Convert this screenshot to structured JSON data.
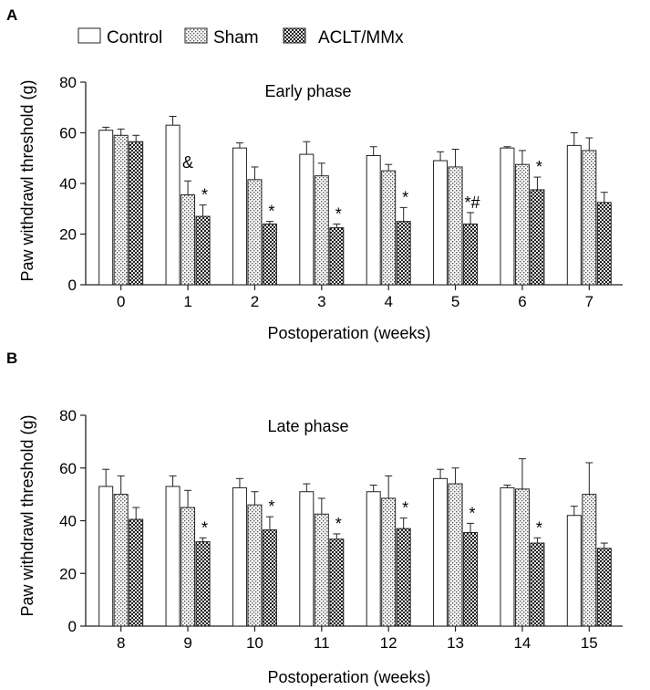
{
  "legend": [
    {
      "name": "Control",
      "pattern": "none"
    },
    {
      "name": "Sham",
      "pattern": "dots"
    },
    {
      "name": "ACLT/MMx",
      "pattern": "checker"
    }
  ],
  "chart_data": [
    {
      "type": "bar",
      "panel": "A",
      "title": "Early phase",
      "xlabel": "Postoperation (weeks)",
      "ylabel": "Paw withdrawl threshold (g)",
      "ylim": [
        0,
        80
      ],
      "yticks": [
        0,
        20,
        40,
        60,
        80
      ],
      "categories": [
        "0",
        "1",
        "2",
        "3",
        "4",
        "5",
        "6",
        "7"
      ],
      "series": [
        {
          "name": "Control",
          "values": [
            61,
            63,
            54,
            51.5,
            51,
            49,
            54,
            55
          ],
          "errors": [
            1.2,
            3.5,
            2,
            5,
            3.5,
            3.5,
            0.5,
            5
          ]
        },
        {
          "name": "Sham",
          "values": [
            59,
            35.5,
            41.5,
            43,
            45,
            46.5,
            47.5,
            53
          ],
          "errors": [
            2.5,
            5.5,
            5,
            5,
            2.5,
            7,
            5.5,
            5
          ]
        },
        {
          "name": "ACLT/MMx",
          "values": [
            56.5,
            27,
            24,
            22.5,
            25,
            24,
            37.5,
            32.5
          ],
          "errors": [
            2.5,
            4.5,
            1,
            1.5,
            5.5,
            4.5,
            5,
            4
          ]
        }
      ],
      "annotations": [
        {
          "category": "1",
          "series": "Sham",
          "text": "&"
        },
        {
          "category": "1",
          "series": "ACLT/MMx",
          "text": "*"
        },
        {
          "category": "2",
          "series": "ACLT/MMx",
          "text": "*"
        },
        {
          "category": "3",
          "series": "ACLT/MMx",
          "text": "*"
        },
        {
          "category": "4",
          "series": "ACLT/MMx",
          "text": "*"
        },
        {
          "category": "5",
          "series": "ACLT/MMx",
          "text": "*#"
        },
        {
          "category": "6",
          "series": "ACLT/MMx",
          "text": "*"
        }
      ]
    },
    {
      "type": "bar",
      "panel": "B",
      "title": "Late phase",
      "xlabel": "Postoperation (weeks)",
      "ylabel": "Paw withdrawl threshold (g)",
      "ylim": [
        0,
        80
      ],
      "yticks": [
        0,
        20,
        40,
        60,
        80
      ],
      "categories": [
        "8",
        "9",
        "10",
        "11",
        "12",
        "13",
        "14",
        "15"
      ],
      "series": [
        {
          "name": "Control",
          "values": [
            53,
            53,
            52.5,
            51,
            51,
            56,
            52.5,
            42
          ],
          "errors": [
            6.5,
            4,
            3.5,
            3,
            2.5,
            3.5,
            1,
            3.5
          ]
        },
        {
          "name": "Sham",
          "values": [
            50,
            45,
            46,
            42.5,
            48.5,
            54,
            52,
            50
          ],
          "errors": [
            7,
            6.5,
            5,
            6,
            8.5,
            6,
            11.5,
            12
          ]
        },
        {
          "name": "ACLT/MMx",
          "values": [
            40.5,
            32,
            36.5,
            33,
            37,
            35.5,
            31.5,
            29.5
          ],
          "errors": [
            4.5,
            1.5,
            5,
            2,
            4,
            3.5,
            2,
            2
          ]
        }
      ],
      "annotations": [
        {
          "category": "9",
          "series": "ACLT/MMx",
          "text": "*"
        },
        {
          "category": "10",
          "series": "ACLT/MMx",
          "text": "*"
        },
        {
          "category": "11",
          "series": "ACLT/MMx",
          "text": "*"
        },
        {
          "category": "12",
          "series": "ACLT/MMx",
          "text": "*"
        },
        {
          "category": "13",
          "series": "ACLT/MMx",
          "text": "*"
        },
        {
          "category": "14",
          "series": "ACLT/MMx",
          "text": "*"
        }
      ]
    }
  ]
}
